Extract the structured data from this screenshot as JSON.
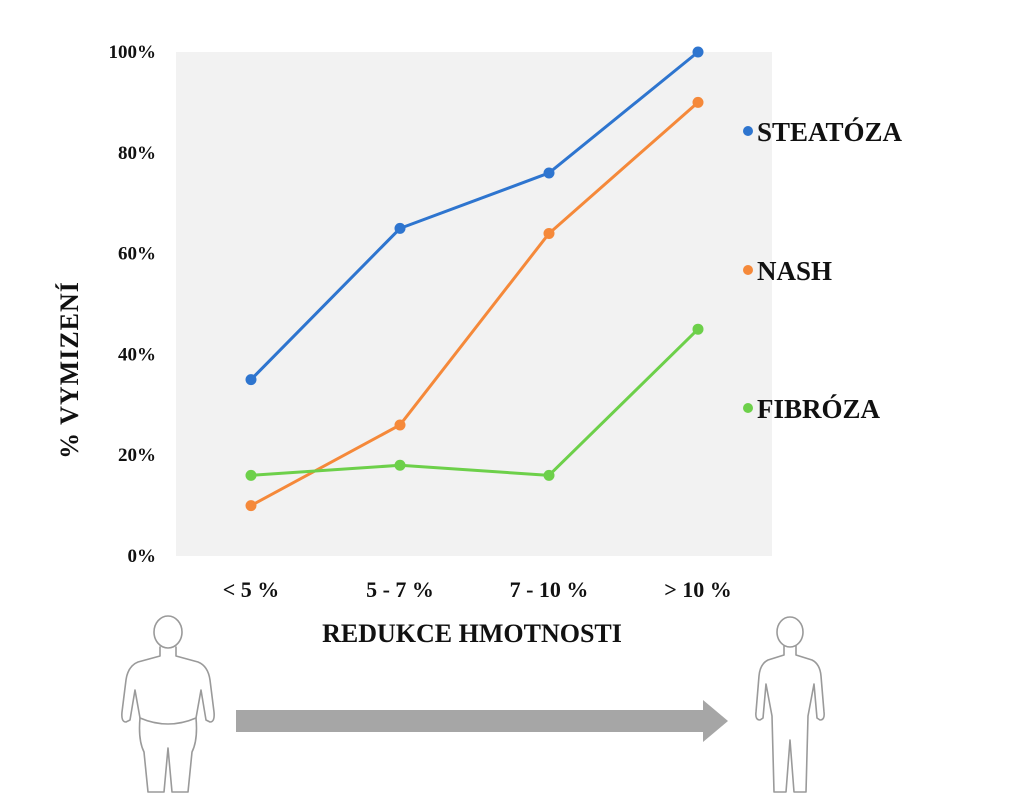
{
  "chart_data": {
    "type": "line",
    "title": "",
    "xlabel": "REDUKCE HMOTNOSTI",
    "ylabel": "% VYMIZENÍ",
    "categories": [
      "< 5 %",
      "5 - 7 %",
      "7 - 10 %",
      "> 10 %"
    ],
    "ylim": [
      0,
      100
    ],
    "yticks": [
      0,
      20,
      40,
      60,
      80,
      100
    ],
    "ytick_labels": [
      "0%",
      "20%",
      "40%",
      "60%",
      "80%",
      "100%"
    ],
    "grid": false,
    "legend_placement": "right",
    "series": [
      {
        "name": "STEATÓZA",
        "color": "#2e75cf",
        "values": [
          35,
          65,
          76,
          100
        ]
      },
      {
        "name": "NASH",
        "color": "#f5893a",
        "values": [
          10,
          26,
          64,
          90
        ]
      },
      {
        "name": "FIBRÓZA",
        "color": "#6dd04a",
        "values": [
          16,
          18,
          16,
          45
        ]
      }
    ],
    "plot_background": "#f2f2f2",
    "decorations": {
      "left_figure": "human-silhouette-heavy-icon",
      "right_figure": "human-silhouette-slim-icon",
      "arrow": "right-arrow-icon",
      "arrow_color": "#a6a6a6"
    }
  }
}
